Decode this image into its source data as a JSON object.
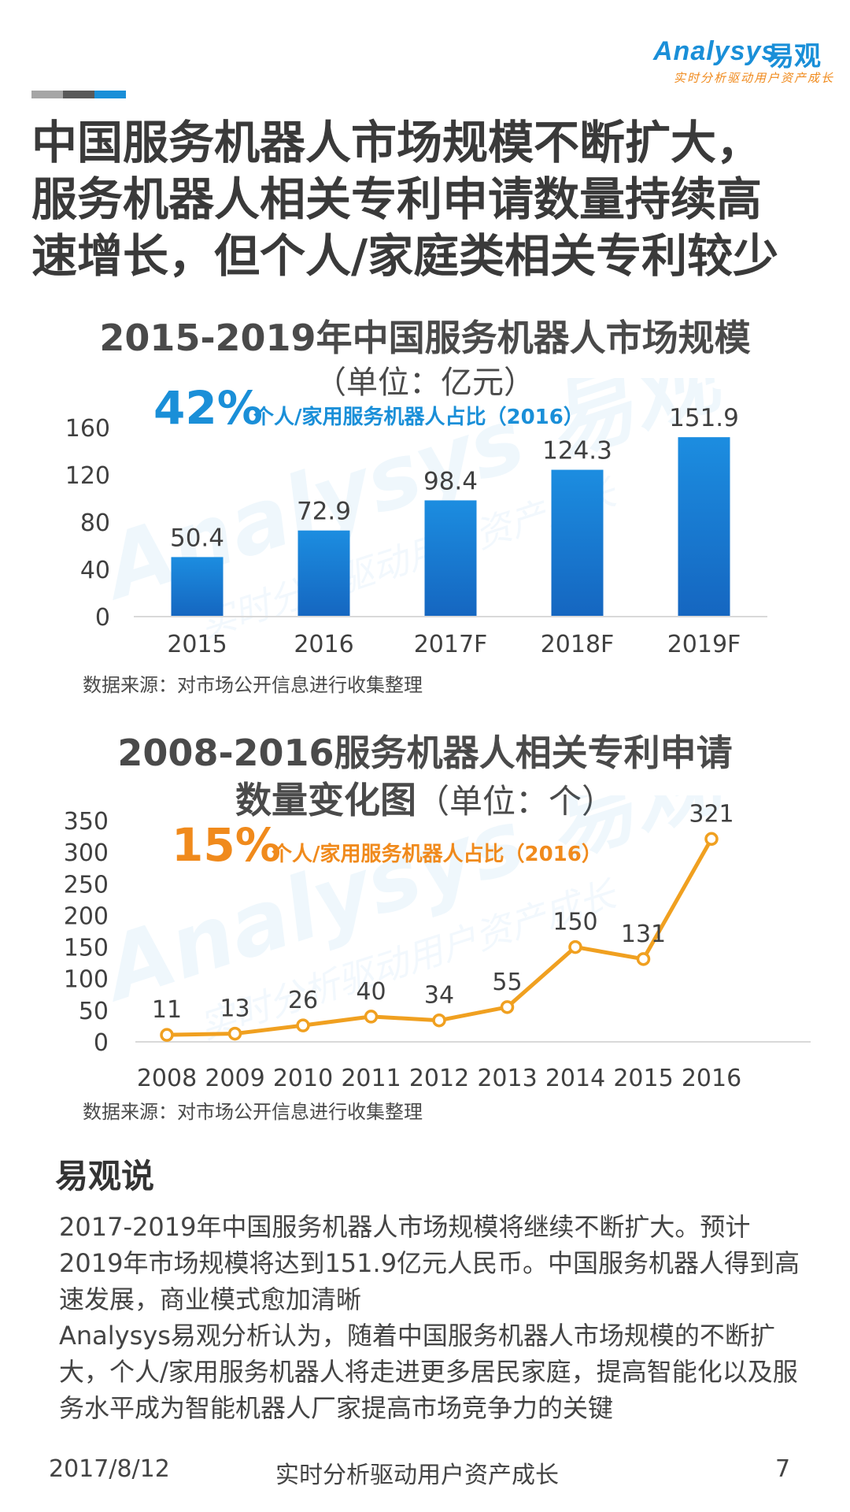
{
  "brand": {
    "logo_text": "Analysys",
    "logo_cn": "易观",
    "tagline": "实时分析驱动用户资产成长",
    "watermark_text": "Analysys 易观",
    "watermark_tagline": "实时分析驱动用户资产成长",
    "primary_color": "#1a8fd8",
    "accent_color": "#f08a1c"
  },
  "headline": {
    "lines": [
      "中国服务机器人市场规模不断扩大，",
      "服务机器人相关专利申请数量持续高",
      "速增长，但个人/家庭类相关专利较少"
    ]
  },
  "chart1": {
    "title": "2015-2019年中国服务机器人市场规模",
    "subtitle": "（单位：亿元）",
    "highlight_value": "42%",
    "highlight_label": "个人/家用服务机器人占比（2016）",
    "source": "数据来源：对市场公开信息进行收集整理"
  },
  "chart2": {
    "title_bold": "2008-2016服务机器人相关专利申请",
    "title_bold2": "数量变化图",
    "title_unit": "（单位：个）",
    "highlight_value": "15%",
    "highlight_label": "个人/家用服务机器人占比（2016）",
    "source": "数据来源：对市场公开信息进行收集整理"
  },
  "chart_data": [
    {
      "type": "bar",
      "title": "2015-2019年中国服务机器人市场规模",
      "subtitle": "（单位：亿元）",
      "categories": [
        "2015",
        "2016",
        "2017F",
        "2018F",
        "2019F"
      ],
      "values": [
        50.4,
        72.9,
        98.4,
        124.3,
        151.9
      ],
      "value_labels": [
        "50.4",
        "72.9",
        "98.4",
        "124.3",
        "151.9"
      ],
      "yticks": [
        "0",
        "40",
        "80",
        "120",
        "160"
      ],
      "ylim": [
        0,
        160
      ],
      "color": "#1a7fd6"
    },
    {
      "type": "line",
      "title": "2008-2016服务机器人相关专利申请数量变化图",
      "subtitle": "（单位：个）",
      "categories": [
        "2008",
        "2009",
        "2010",
        "2011",
        "2012",
        "2013",
        "2014",
        "2015",
        "2016"
      ],
      "values": [
        11,
        13,
        26,
        40,
        34,
        55,
        150,
        131,
        321
      ],
      "value_labels": [
        "11",
        "13",
        "26",
        "40",
        "34",
        "55",
        "150",
        "131",
        "321"
      ],
      "yticks": [
        "0",
        "50",
        "100",
        "150",
        "200",
        "250",
        "300",
        "350"
      ],
      "ylim": [
        0,
        350
      ],
      "color": "#f0a020"
    }
  ],
  "insight": {
    "title": "易观说",
    "paragraphs": [
      "2017-2019年中国服务机器人市场规模将继续不断扩大。预计2019年市场规模将达到151.9亿元人民币。中国服务机器人得到高速发展，商业模式愈加清晰",
      "Analysys易观分析认为，随着中国服务机器人市场规模的不断扩大，个人/家用服务机器人将走进更多居民家庭，提高智能化以及服务水平成为智能机器人厂家提高市场竞争力的关键"
    ]
  },
  "footer": {
    "date": "2017/8/12",
    "slogan": "实时分析驱动用户资产成长",
    "page": "7"
  }
}
